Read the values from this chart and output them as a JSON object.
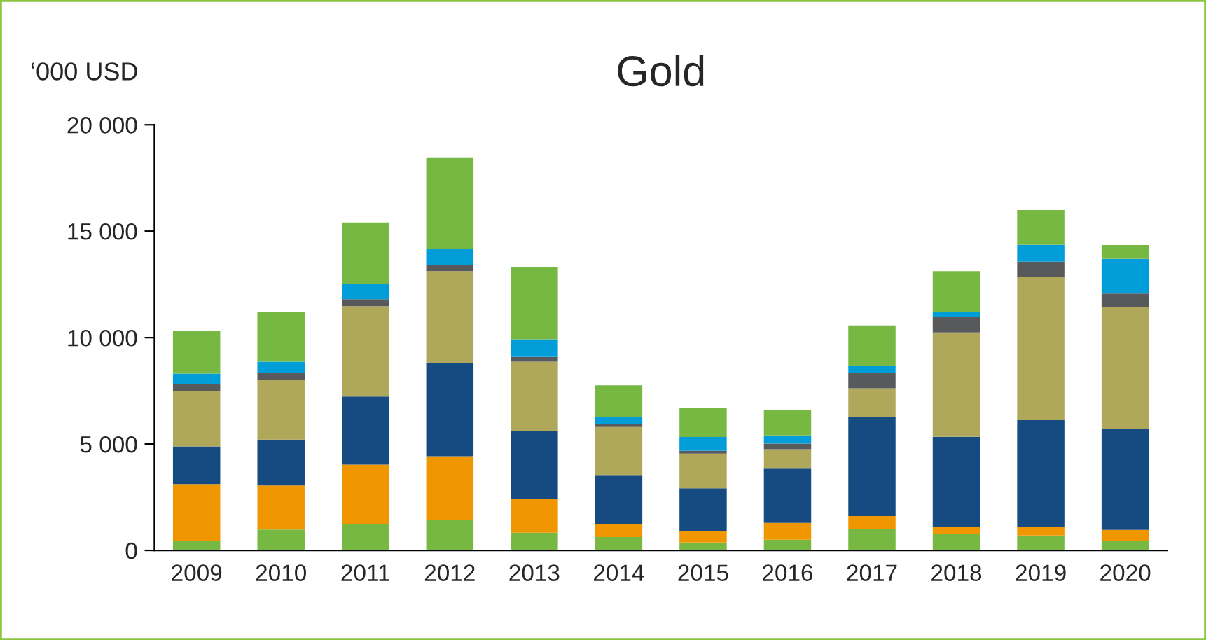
{
  "chart_data": {
    "type": "bar",
    "title": "Gold",
    "ylabel": "‘000 USD",
    "stacked": true,
    "grid": false,
    "categories": [
      "2009",
      "2010",
      "2011",
      "2012",
      "2013",
      "2014",
      "2015",
      "2016",
      "2017",
      "2018",
      "2019",
      "2020"
    ],
    "series": [
      {
        "color": "#77b843",
        "values": [
          460,
          980,
          1240,
          1420,
          830,
          630,
          370,
          500,
          1020,
          760,
          700,
          440
        ]
      },
      {
        "color": "#f09600",
        "values": [
          2660,
          2070,
          2790,
          3010,
          1570,
          590,
          520,
          790,
          590,
          330,
          390,
          520
        ]
      },
      {
        "color": "#164b82",
        "values": [
          1770,
          2160,
          3200,
          4380,
          3200,
          2290,
          2030,
          2550,
          4640,
          4250,
          5030,
          4770
        ]
      },
      {
        "color": "#afa85a",
        "values": [
          2610,
          2810,
          4250,
          4310,
          3270,
          2290,
          1630,
          920,
          1370,
          4900,
          6730,
          5690
        ]
      },
      {
        "color": "#58595b",
        "values": [
          330,
          330,
          330,
          280,
          220,
          150,
          130,
          260,
          720,
          720,
          720,
          650
        ]
      },
      {
        "color": "#009dd9",
        "values": [
          480,
          520,
          720,
          760,
          830,
          310,
          650,
          390,
          330,
          260,
          790,
          1630
        ]
      },
      {
        "color": "#77b843",
        "values": [
          2000,
          2350,
          2880,
          4310,
          3400,
          1500,
          1370,
          1180,
          1900,
          1900,
          1630,
          650
        ]
      }
    ],
    "ylim": [
      0,
      20000
    ],
    "yticks": [
      0,
      {
        "value": 5000,
        "label": "5 000"
      },
      {
        "value": 10000,
        "label": "10 000"
      },
      {
        "value": 15000,
        "label": "15 000"
      },
      {
        "value": 20000,
        "label": "20 000"
      }
    ]
  }
}
